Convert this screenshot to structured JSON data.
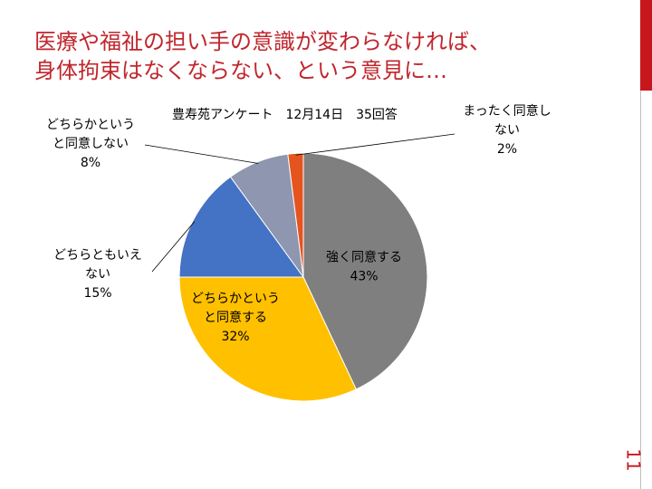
{
  "slide": {
    "title_lines": [
      "医療や福祉の担い手の意識が変わらなければ、",
      "身体拘束はなくならない、という意見に…"
    ],
    "page_number": "11",
    "accent_color": "#C8161D"
  },
  "chart_data": {
    "type": "pie",
    "title": "豊寿苑アンケート　12月14日　35回答",
    "start_angle_deg": 0,
    "direction": "clockwise",
    "slices": [
      {
        "name": "強く同意する",
        "value": 43,
        "label": "43%",
        "color": "#7F7F7F"
      },
      {
        "name": "どちらかというと同意する",
        "value": 32,
        "label": "32%",
        "color": "#FFC000"
      },
      {
        "name": "どちらともいえない",
        "value": 15,
        "label": "15%",
        "color": "#4472C4"
      },
      {
        "name": "どちらかというと同意しない",
        "value": 8,
        "label": "8%",
        "color": "#8E96B0"
      },
      {
        "name": "まったく同意しない",
        "value": 2,
        "label": "2%",
        "color": "#E5541F"
      }
    ],
    "label_lines": [
      [
        "強く同意する",
        "43%"
      ],
      [
        "どちらかというと同意する",
        "32%"
      ],
      [
        "どちらともいえない",
        "15%"
      ],
      [
        "どちらかというと同意しない",
        "8%"
      ],
      [
        "まったく同意しない",
        "2%"
      ]
    ]
  }
}
